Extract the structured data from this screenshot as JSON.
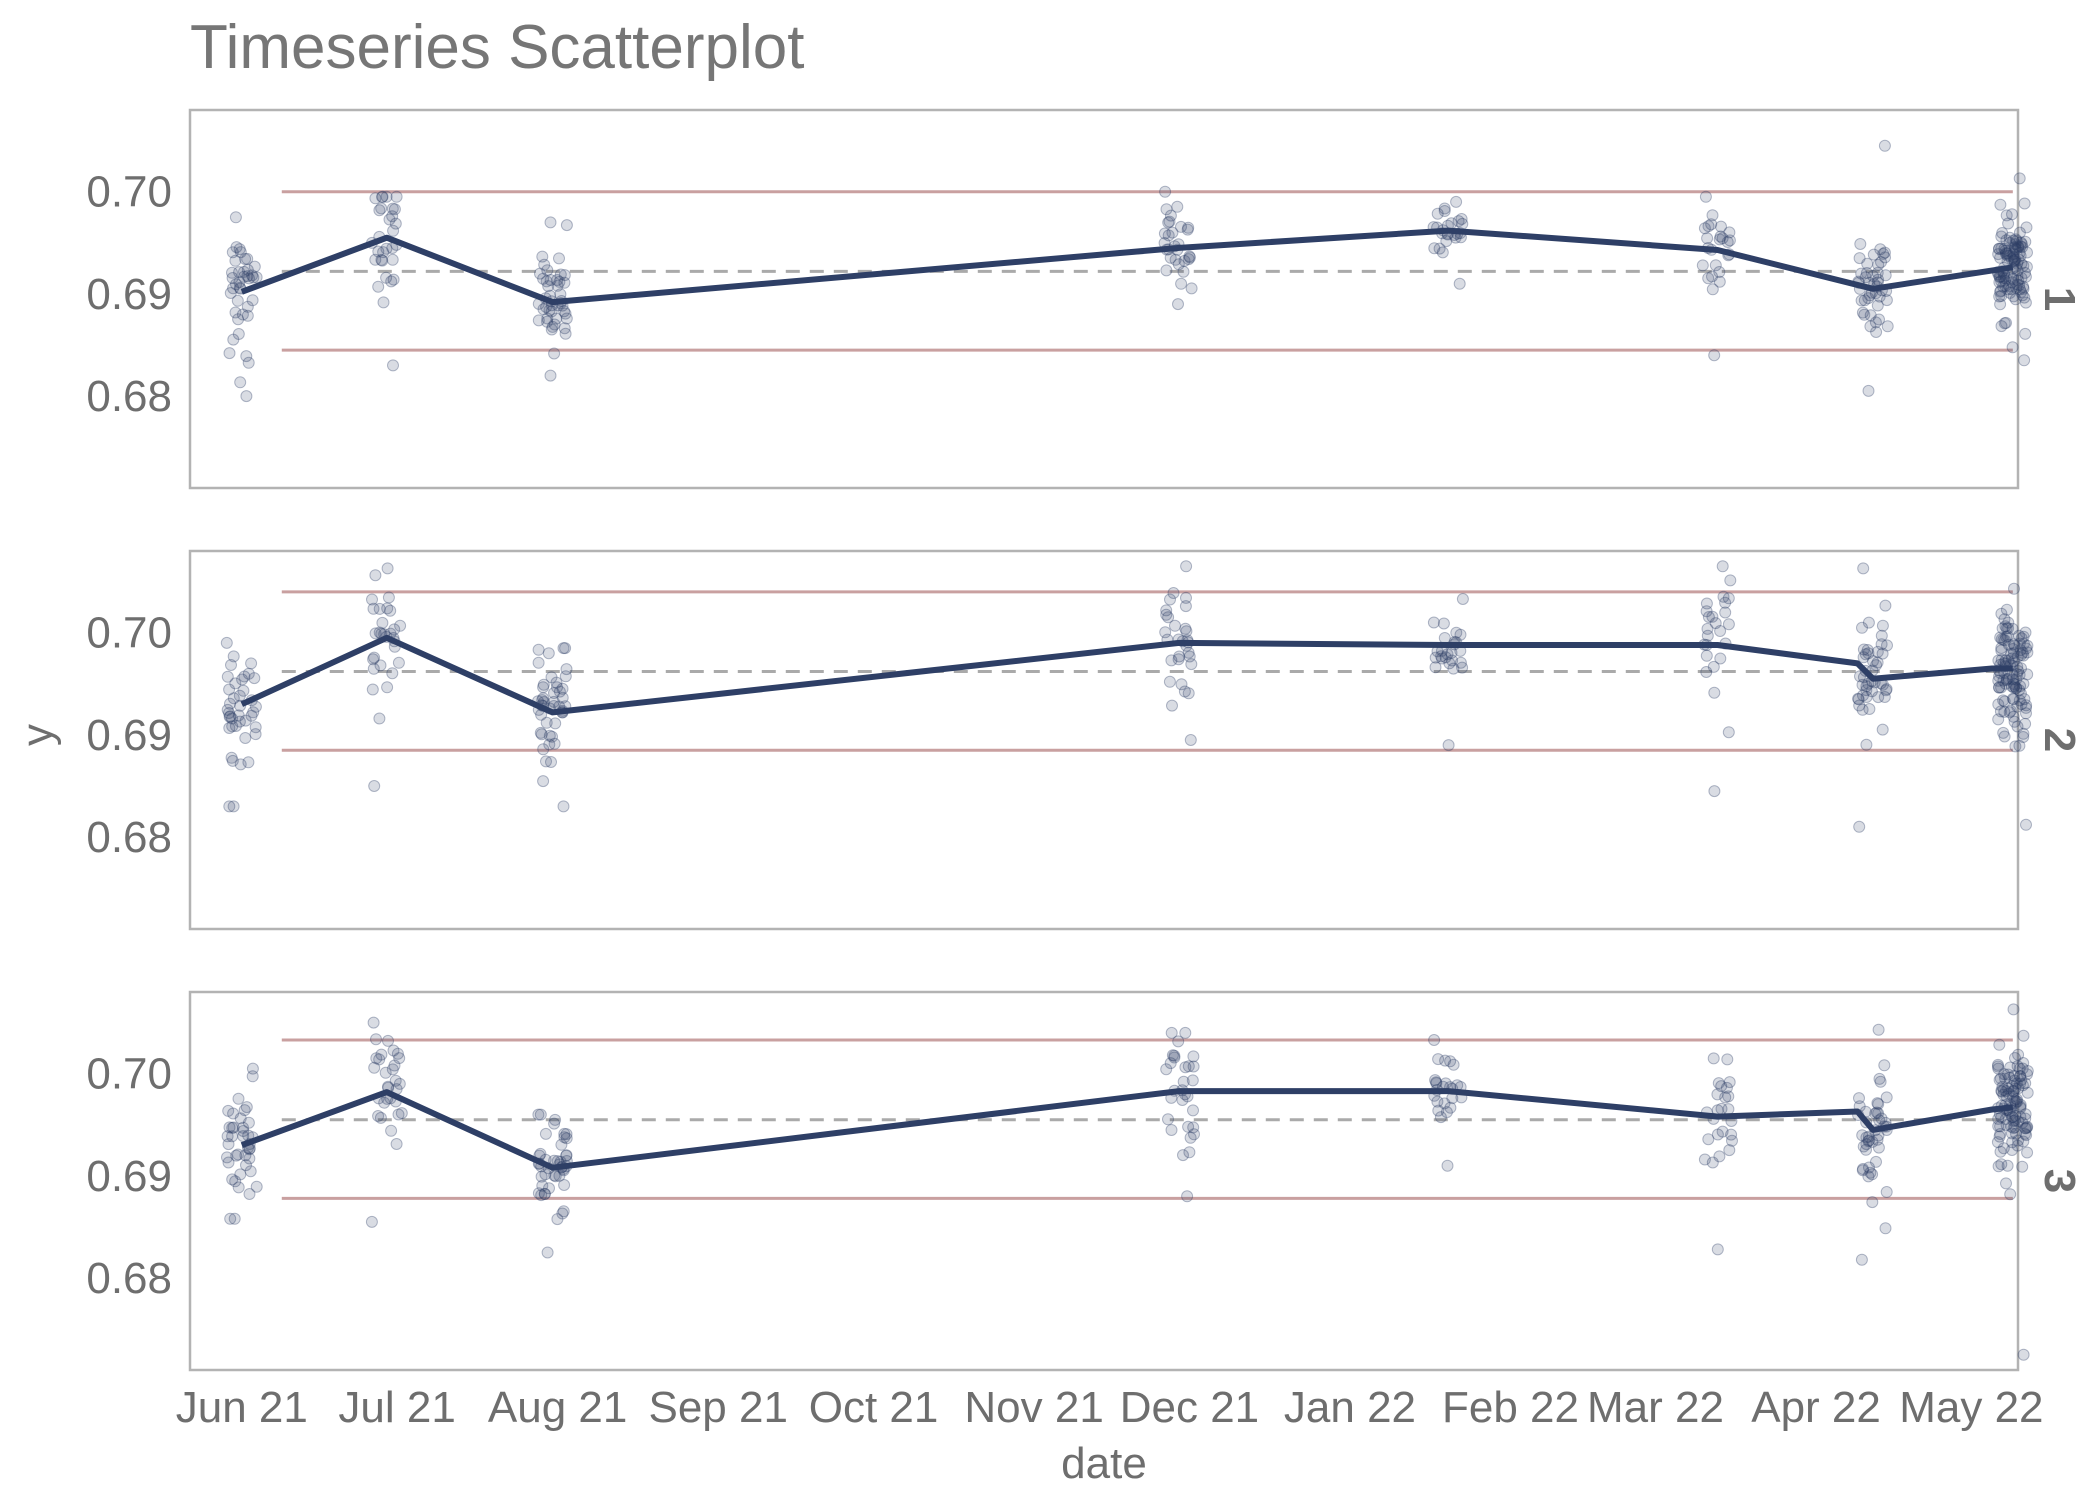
{
  "chart_data": {
    "type": "scatter",
    "title": "Timeseries Scatterplot",
    "xlabel": "date",
    "ylabel": "y",
    "x_ticks": [
      "Jun 21",
      "Jul 21",
      "Aug 21",
      "Sep 21",
      "Oct 21",
      "Nov 21",
      "Dec 21",
      "Jan 22",
      "Feb 22",
      "Mar 22",
      "Apr 22",
      "May 22"
    ],
    "x_tick_dates": [
      "2021-06-01",
      "2021-07-01",
      "2021-08-01",
      "2021-09-01",
      "2021-10-01",
      "2021-11-01",
      "2021-12-01",
      "2022-01-01",
      "2022-02-01",
      "2022-03-01",
      "2022-04-01",
      "2022-05-01"
    ],
    "xlim": [
      "2021-05-22",
      "2022-05-10"
    ],
    "y_ticks": [
      0.68,
      0.69,
      0.7
    ],
    "ylim": [
      0.671,
      0.708
    ],
    "grid": false,
    "colors": {
      "points": "#2e3f66",
      "mean_line": "#2e3f66",
      "limits": "#c9a0a0",
      "center": "#aaaaaa"
    },
    "panels": [
      {
        "label": "1",
        "center": 0.6922,
        "upper": 0.7,
        "lower": 0.6845,
        "mean_dates": [
          "2021-06-01",
          "2021-06-29",
          "2021-07-31",
          "2021-11-29",
          "2022-01-20",
          "2022-03-13",
          "2022-04-12",
          "2022-05-09"
        ],
        "mean_values": [
          0.6902,
          0.6955,
          0.6892,
          0.6945,
          0.6962,
          0.6943,
          0.6905,
          0.6926
        ],
        "sample_dates": [
          "2021-06-01",
          "2021-06-29",
          "2021-07-31",
          "2021-11-29",
          "2022-01-20",
          "2022-03-13",
          "2022-04-12",
          "2022-05-09"
        ],
        "sample_counts": [
          40,
          30,
          45,
          30,
          25,
          25,
          45,
          110
        ],
        "sample_spread": [
          0.0045,
          0.0035,
          0.0038,
          0.0025,
          0.0015,
          0.003,
          0.004,
          0.003
        ],
        "sample_min": [
          0.68,
          0.683,
          0.682,
          0.689,
          0.691,
          0.684,
          0.6805,
          0.6835
        ],
        "sample_max": [
          0.6975,
          0.6995,
          0.697,
          0.7,
          0.699,
          0.6995,
          0.7045,
          0.7013
        ]
      },
      {
        "label": "2",
        "center": 0.6962,
        "upper": 0.704,
        "lower": 0.6885,
        "mean_dates": [
          "2021-06-01",
          "2021-06-29",
          "2021-07-31",
          "2021-11-29",
          "2022-01-20",
          "2022-03-13",
          "2022-04-09",
          "2022-04-12",
          "2022-05-05",
          "2022-05-09"
        ],
        "mean_values": [
          0.693,
          0.6995,
          0.6922,
          0.699,
          0.6988,
          0.6988,
          0.697,
          0.6955,
          0.6965,
          0.6965
        ],
        "sample_dates": [
          "2021-06-01",
          "2021-06-29",
          "2021-07-31",
          "2021-11-29",
          "2022-01-20",
          "2022-03-13",
          "2022-04-12",
          "2022-05-09"
        ],
        "sample_counts": [
          40,
          30,
          45,
          30,
          25,
          25,
          45,
          110
        ],
        "sample_spread": [
          0.004,
          0.004,
          0.0035,
          0.004,
          0.002,
          0.004,
          0.0045,
          0.004
        ],
        "sample_min": [
          0.683,
          0.685,
          0.683,
          0.6895,
          0.689,
          0.6845,
          0.681,
          0.6812
        ],
        "sample_max": [
          0.699,
          0.7063,
          0.6985,
          0.7065,
          0.7033,
          0.7065,
          0.7063,
          0.7043
        ]
      },
      {
        "label": "3",
        "center": 0.6955,
        "upper": 0.7033,
        "lower": 0.6878,
        "mean_dates": [
          "2021-06-01",
          "2021-06-29",
          "2021-07-31",
          "2021-11-29",
          "2022-01-20",
          "2022-03-13",
          "2022-04-09",
          "2022-04-12",
          "2022-05-05",
          "2022-05-09"
        ],
        "mean_values": [
          0.693,
          0.6982,
          0.6908,
          0.6983,
          0.6983,
          0.6958,
          0.6963,
          0.6945,
          0.6965,
          0.6967
        ],
        "sample_dates": [
          "2021-06-01",
          "2021-06-29",
          "2021-07-31",
          "2021-11-29",
          "2022-01-20",
          "2022-03-13",
          "2022-04-12",
          "2022-05-09"
        ],
        "sample_counts": [
          40,
          30,
          45,
          30,
          25,
          25,
          45,
          110
        ],
        "sample_spread": [
          0.004,
          0.004,
          0.003,
          0.004,
          0.0025,
          0.0035,
          0.0045,
          0.004
        ],
        "sample_min": [
          0.6858,
          0.6855,
          0.6825,
          0.688,
          0.691,
          0.6828,
          0.6818,
          0.6725
        ],
        "sample_max": [
          0.7005,
          0.705,
          0.696,
          0.704,
          0.7033,
          0.7015,
          0.7043,
          0.7063
        ]
      }
    ]
  }
}
